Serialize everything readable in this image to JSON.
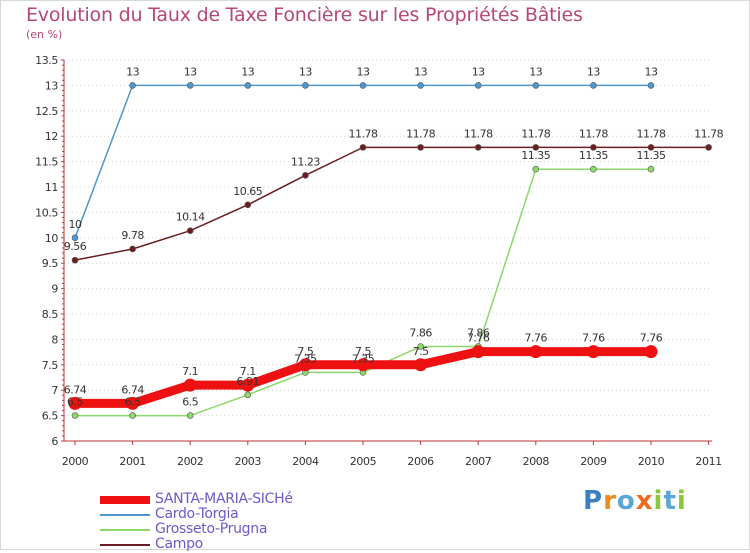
{
  "chart_data": {
    "type": "line",
    "title": "Evolution du Taux de Taxe Foncière sur les Propriétés Bâties",
    "ylabel": "(en %)",
    "xlabel": "",
    "ylim": [
      6,
      13.5
    ],
    "yticks": [
      "6",
      "6.5",
      "7",
      "7.5",
      "8",
      "8.5",
      "9",
      "9.5",
      "10",
      "10.5",
      "11",
      "11.5",
      "12",
      "12.5",
      "13",
      "13.5"
    ],
    "categories": [
      "2000",
      "2001",
      "2002",
      "2003",
      "2004",
      "2005",
      "2006",
      "2007",
      "2008",
      "2009",
      "2010",
      "2011"
    ],
    "series": [
      {
        "name": "Campo",
        "color": "#6b1e22",
        "values": [
          9.56,
          9.78,
          10.14,
          10.65,
          11.23,
          11.78,
          11.78,
          11.78,
          11.78,
          11.78,
          11.78,
          11.78
        ],
        "labels": [
          "9.56",
          "9.78",
          "10.14",
          "10.65",
          "11.23",
          "11.78",
          "11.78",
          "11.78",
          "11.78",
          "11.78",
          "11.78",
          "11.78"
        ]
      },
      {
        "name": "Cardo-Torgia",
        "color": "#4f97cf",
        "values": [
          10,
          13,
          13,
          13,
          13,
          13,
          13,
          13,
          13,
          13,
          13,
          null
        ],
        "labels": [
          "10",
          "13",
          "13",
          "13",
          "13",
          "13",
          "13",
          "13",
          "13",
          "13",
          "13",
          null
        ]
      },
      {
        "name": "Grosseto-Prugna",
        "color": "#8dd86a",
        "values": [
          6.5,
          6.5,
          6.5,
          6.91,
          7.35,
          7.35,
          7.86,
          7.86,
          11.35,
          11.35,
          11.35,
          null
        ],
        "labels": [
          "6.5",
          "6.5",
          "6.5",
          "6.91",
          "7.35",
          "7.35",
          "7.86",
          "7.86",
          "11.35",
          "11.35",
          "11.35",
          null
        ]
      },
      {
        "name": "SANTA-MARIA-SICHé",
        "color": "#ee1111",
        "values": [
          6.74,
          6.74,
          7.1,
          7.1,
          7.5,
          7.5,
          7.5,
          7.76,
          7.76,
          7.76,
          7.76,
          null
        ],
        "labels": [
          "6.74",
          "6.74",
          "7.1",
          "7.1",
          "7.5",
          "7.5",
          "7.5",
          "7.76",
          "7.76",
          "7.76",
          "7.76",
          null
        ]
      }
    ],
    "legend": [
      {
        "name": "SANTA-MARIA-SICHé",
        "color": "#ee1111",
        "text_color": "#6a5acd"
      },
      {
        "name": "Cardo-Torgia",
        "color": "#4f97cf",
        "text_color": "#6a5acd"
      },
      {
        "name": "Grosseto-Prugna",
        "color": "#8dd86a",
        "text_color": "#6a5acd"
      },
      {
        "name": "Campo",
        "color": "#6b1e22",
        "text_color": "#6a5acd"
      }
    ]
  },
  "logo": {
    "text": "Proxiti",
    "letters": [
      {
        "ch": "P",
        "color": "#3a7fc1"
      },
      {
        "ch": "r",
        "color": "#ee8a1e"
      },
      {
        "ch": "o",
        "color": "#5aa6d8"
      },
      {
        "ch": "x",
        "color": "#ee6a1e"
      },
      {
        "ch": "i",
        "color": "#8cc63e"
      },
      {
        "ch": "t",
        "color": "#5aa6d8"
      },
      {
        "ch": "i",
        "color": "#8cc63e"
      }
    ]
  }
}
